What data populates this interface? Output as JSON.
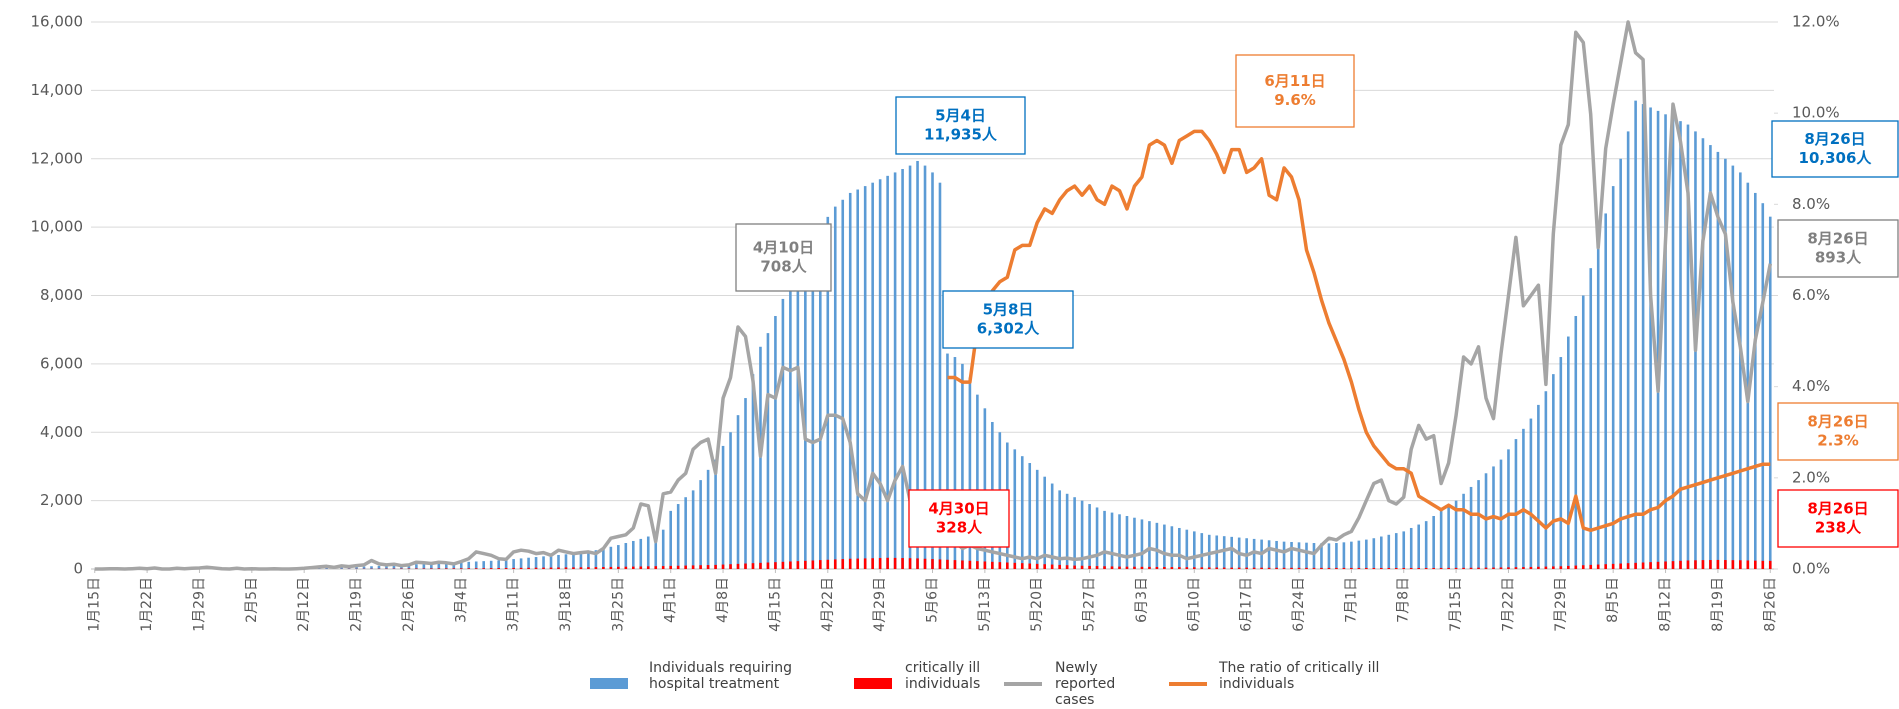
{
  "chart_data": {
    "type": "bar-line",
    "categories": [
      "1月15日",
      null,
      null,
      null,
      null,
      null,
      null,
      "1月22日",
      null,
      null,
      null,
      null,
      null,
      null,
      "1月29日",
      null,
      null,
      null,
      null,
      null,
      null,
      "2月5日",
      null,
      null,
      null,
      null,
      null,
      null,
      "2月12日",
      null,
      null,
      null,
      null,
      null,
      null,
      "2月19日",
      null,
      null,
      null,
      null,
      null,
      null,
      "2月26日",
      null,
      null,
      null,
      null,
      null,
      null,
      "3月4日",
      null,
      null,
      null,
      null,
      null,
      null,
      "3月11日",
      null,
      null,
      null,
      null,
      null,
      null,
      "3月18日",
      null,
      null,
      null,
      null,
      null,
      null,
      "3月25日",
      null,
      null,
      null,
      null,
      null,
      null,
      "4月1日",
      null,
      null,
      null,
      null,
      null,
      null,
      "4月8日",
      null,
      null,
      null,
      null,
      null,
      null,
      "4月15日",
      null,
      null,
      null,
      null,
      null,
      null,
      "4月22日",
      null,
      null,
      null,
      null,
      null,
      null,
      "4月29日",
      null,
      null,
      null,
      null,
      null,
      null,
      "5月6日",
      null,
      null,
      null,
      null,
      null,
      null,
      "5月13日",
      null,
      null,
      null,
      null,
      null,
      null,
      "5月20日",
      null,
      null,
      null,
      null,
      null,
      null,
      "5月27日",
      null,
      null,
      null,
      null,
      null,
      null,
      "6月3日",
      null,
      null,
      null,
      null,
      null,
      null,
      "6月10日",
      null,
      null,
      null,
      null,
      null,
      null,
      "6月17日",
      null,
      null,
      null,
      null,
      null,
      null,
      "6月24日",
      null,
      null,
      null,
      null,
      null,
      null,
      "7月1日",
      null,
      null,
      null,
      null,
      null,
      null,
      "7月8日",
      null,
      null,
      null,
      null,
      null,
      null,
      "7月15日",
      null,
      null,
      null,
      null,
      null,
      null,
      "7月22日",
      null,
      null,
      null,
      null,
      null,
      null,
      "7月29日",
      null,
      null,
      null,
      null,
      null,
      null,
      "8月5日",
      null,
      null,
      null,
      null,
      null,
      null,
      "8月12日",
      null,
      null,
      null,
      null,
      null,
      null,
      "8月19日",
      null,
      null,
      null,
      null,
      null,
      null,
      "8月26日"
    ],
    "series": [
      {
        "name": "Individuals requiring hospital treatment",
        "type": "bar",
        "color": "#5b9bd5",
        "axis": "y",
        "values": [
          1,
          1,
          1,
          1,
          1,
          1,
          1,
          2,
          2,
          3,
          4,
          5,
          6,
          8,
          9,
          11,
          12,
          13,
          14,
          15,
          16,
          17,
          18,
          20,
          22,
          25,
          28,
          30,
          33,
          36,
          40,
          45,
          50,
          55,
          60,
          65,
          70,
          80,
          90,
          100,
          110,
          120,
          130,
          140,
          150,
          160,
          170,
          180,
          190,
          200,
          210,
          220,
          230,
          240,
          250,
          270,
          290,
          310,
          330,
          350,
          370,
          390,
          410,
          430,
          450,
          480,
          510,
          550,
          600,
          650,
          700,
          760,
          820,
          880,
          950,
          1050,
          1150,
          1700,
          1900,
          2100,
          2300,
          2600,
          2900,
          3200,
          3600,
          4000,
          4500,
          5000,
          5700,
          6500,
          6900,
          7400,
          7900,
          8300,
          8700,
          9100,
          9500,
          9900,
          10300,
          10600,
          10800,
          11000,
          11100,
          11200,
          11300,
          11400,
          11500,
          11600,
          11700,
          11800,
          11935,
          11800,
          11600,
          11300,
          6302,
          6200,
          6000,
          5600,
          5100,
          4700,
          4300,
          4000,
          3700,
          3500,
          3300,
          3100,
          2900,
          2700,
          2500,
          2300,
          2200,
          2100,
          2000,
          1900,
          1800,
          1700,
          1650,
          1600,
          1550,
          1500,
          1450,
          1400,
          1350,
          1300,
          1250,
          1200,
          1150,
          1100,
          1050,
          1000,
          980,
          960,
          940,
          920,
          900,
          880,
          860,
          840,
          820,
          800,
          790,
          780,
          770,
          760,
          750,
          750,
          760,
          780,
          800,
          830,
          860,
          900,
          950,
          1000,
          1050,
          1100,
          1200,
          1300,
          1400,
          1550,
          1700,
          1850,
          2000,
          2200,
          2400,
          2600,
          2800,
          3000,
          3200,
          3500,
          3800,
          4100,
          4400,
          4800,
          5200,
          5700,
          6200,
          6800,
          7400,
          8000,
          8800,
          9600,
          10400,
          11200,
          12000,
          12800,
          13700,
          13600,
          13500,
          13400,
          13300,
          13200,
          13100,
          13000,
          12800,
          12600,
          12400,
          12200,
          12000,
          11800,
          11600,
          11300,
          11000,
          10700,
          10306
        ]
      },
      {
        "name": "critically ill individuals",
        "type": "bar",
        "color": "#ff0000",
        "axis": "y",
        "values": [
          0,
          0,
          0,
          0,
          0,
          0,
          0,
          0,
          0,
          0,
          0,
          0,
          0,
          0,
          0,
          0,
          0,
          0,
          0,
          0,
          0,
          0,
          0,
          0,
          0,
          0,
          0,
          1,
          1,
          2,
          2,
          3,
          3,
          4,
          5,
          6,
          7,
          8,
          9,
          10,
          11,
          12,
          13,
          14,
          15,
          16,
          17,
          18,
          19,
          20,
          21,
          22,
          24,
          26,
          28,
          30,
          32,
          34,
          36,
          38,
          40,
          42,
          44,
          46,
          48,
          50,
          52,
          55,
          58,
          61,
          64,
          67,
          70,
          74,
          78,
          82,
          86,
          90,
          95,
          100,
          105,
          110,
          115,
          120,
          130,
          140,
          150,
          160,
          170,
          180,
          190,
          200,
          210,
          220,
          230,
          240,
          250,
          260,
          270,
          280,
          290,
          300,
          305,
          310,
          315,
          320,
          328,
          325,
          320,
          315,
          310,
          300,
          290,
          280,
          270,
          260,
          250,
          240,
          230,
          220,
          210,
          200,
          190,
          180,
          170,
          160,
          150,
          140,
          130,
          120,
          110,
          100,
          95,
          90,
          85,
          80,
          75,
          70,
          68,
          66,
          64,
          62,
          60,
          58,
          56,
          54,
          52,
          50,
          48,
          46,
          44,
          42,
          40,
          40,
          40,
          38,
          38,
          36,
          36,
          35,
          35,
          34,
          34,
          33,
          33,
          32,
          32,
          32,
          31,
          31,
          31,
          30,
          30,
          30,
          30,
          30,
          30,
          30,
          30,
          30,
          31,
          32,
          33,
          34,
          36,
          38,
          40,
          42,
          45,
          48,
          52,
          56,
          60,
          65,
          70,
          75,
          80,
          90,
          100,
          110,
          120,
          130,
          140,
          150,
          160,
          170,
          180,
          190,
          200,
          210,
          220,
          230,
          240,
          250,
          255,
          260,
          262,
          265,
          262,
          258,
          255,
          250,
          245,
          240,
          238
        ]
      },
      {
        "name": "Newly reported cases",
        "type": "line",
        "color": "#a5a5a5",
        "axis": "y3",
        "values": [
          0,
          0,
          1,
          1,
          0,
          1,
          2,
          1,
          3,
          0,
          0,
          2,
          1,
          2,
          3,
          5,
          3,
          1,
          0,
          2,
          0,
          1,
          0,
          0,
          1,
          0,
          0,
          1,
          2,
          4,
          6,
          8,
          5,
          9,
          7,
          10,
          12,
          25,
          15,
          12,
          14,
          10,
          12,
          20,
          18,
          16,
          20,
          18,
          15,
          22,
          30,
          50,
          45,
          40,
          30,
          28,
          50,
          55,
          52,
          45,
          48,
          40,
          55,
          50,
          45,
          48,
          50,
          45,
          60,
          90,
          95,
          100,
          120,
          190,
          185,
          80,
          220,
          225,
          260,
          280,
          350,
          370,
          380,
          280,
          500,
          560,
          708,
          680,
          550,
          330,
          510,
          500,
          590,
          580,
          590,
          380,
          370,
          380,
          450,
          450,
          440,
          370,
          220,
          200,
          280,
          250,
          200,
          260,
          300,
          200,
          190,
          130,
          110,
          100,
          90,
          80,
          60,
          70,
          60,
          55,
          50,
          45,
          40,
          35,
          30,
          35,
          30,
          40,
          35,
          30,
          32,
          28,
          30,
          35,
          40,
          50,
          45,
          40,
          35,
          40,
          45,
          60,
          55,
          45,
          40,
          40,
          30,
          35,
          40,
          45,
          50,
          55,
          60,
          45,
          40,
          50,
          45,
          60,
          55,
          50,
          60,
          55,
          50,
          45,
          70,
          90,
          85,
          100,
          110,
          150,
          200,
          250,
          260,
          200,
          190,
          210,
          350,
          420,
          380,
          390,
          250,
          310,
          450,
          620,
          600,
          650,
          500,
          440,
          630,
          800,
          970,
          770,
          800,
          830,
          540,
          980,
          1240,
          1300,
          1570,
          1540,
          1330,
          940,
          1230,
          1360,
          1480,
          1600,
          1510,
          1490,
          800,
          520,
          960,
          1360,
          1250,
          1100,
          640,
          960,
          1100,
          1030,
          980,
          780,
          650,
          490,
          670,
          780,
          893
        ]
      },
      {
        "name": "The ratio of critically ill individuals",
        "type": "line",
        "color": "#ed7d31",
        "axis": "y2",
        "values": [
          null,
          null,
          null,
          null,
          null,
          null,
          null,
          null,
          null,
          null,
          null,
          null,
          null,
          null,
          null,
          null,
          null,
          null,
          null,
          null,
          null,
          null,
          null,
          null,
          null,
          null,
          null,
          null,
          null,
          null,
          null,
          null,
          null,
          null,
          null,
          null,
          null,
          null,
          null,
          null,
          null,
          null,
          null,
          null,
          null,
          null,
          null,
          null,
          null,
          null,
          null,
          null,
          null,
          null,
          null,
          null,
          null,
          null,
          null,
          null,
          null,
          null,
          null,
          null,
          null,
          null,
          null,
          null,
          null,
          null,
          null,
          null,
          null,
          null,
          null,
          null,
          null,
          null,
          null,
          null,
          null,
          null,
          null,
          null,
          null,
          null,
          null,
          null,
          null,
          null,
          null,
          null,
          null,
          null,
          null,
          null,
          null,
          null,
          null,
          null,
          null,
          null,
          null,
          null,
          null,
          null,
          null,
          null,
          null,
          null,
          null,
          null,
          null,
          null,
          4.2,
          4.2,
          4.1,
          4.1,
          5.3,
          5.8,
          6.1,
          6.3,
          6.4,
          7.0,
          7.1,
          7.1,
          7.6,
          7.9,
          7.8,
          8.1,
          8.3,
          8.4,
          8.2,
          8.4,
          8.1,
          8.0,
          8.4,
          8.3,
          7.9,
          8.4,
          8.6,
          9.3,
          9.4,
          9.3,
          8.9,
          9.4,
          9.5,
          9.6,
          9.6,
          9.4,
          9.1,
          8.7,
          9.2,
          9.2,
          8.7,
          8.8,
          9.0,
          8.2,
          8.1,
          8.8,
          8.6,
          8.1,
          7.0,
          6.5,
          5.9,
          5.4,
          5.0,
          4.6,
          4.1,
          3.5,
          3.0,
          2.7,
          2.5,
          2.3,
          2.2,
          2.2,
          2.1,
          1.6,
          1.5,
          1.4,
          1.3,
          1.4,
          1.3,
          1.3,
          1.2,
          1.2,
          1.1,
          1.15,
          1.1,
          1.2,
          1.2,
          1.3,
          1.2,
          1.05,
          0.9,
          1.05,
          1.1,
          1.0,
          1.6,
          0.9,
          0.85,
          0.9,
          0.95,
          1.0,
          1.1,
          1.15,
          1.2,
          1.2,
          1.3,
          1.35,
          1.5,
          1.6,
          1.75,
          1.8,
          1.85,
          1.9,
          1.95,
          2.0,
          2.05,
          2.1,
          2.15,
          2.2,
          2.25,
          2.3,
          2.3
        ]
      }
    ],
    "ylim": [
      0,
      16000
    ],
    "yticks": [
      0,
      {
        "value": 2000,
        "label": "2,000"
      },
      {
        "value": 4000,
        "label": "4,000"
      },
      {
        "value": 6000,
        "label": "6,000"
      },
      {
        "value": 8000,
        "label": "8,000"
      },
      {
        "value": 10000,
        "label": "10,000"
      },
      {
        "value": 12000,
        "label": "12,000"
      },
      {
        "value": 14000,
        "label": "14,000"
      },
      {
        "value": 16000,
        "label": "16,000"
      }
    ],
    "y2lim": [
      0,
      12
    ],
    "y2ticks": [
      {
        "value": 0,
        "label": "0.0%"
      },
      {
        "value": 2,
        "label": "2.0%"
      },
      {
        "value": 4,
        "label": "4.0%"
      },
      {
        "value": 6,
        "label": "6.0%"
      },
      {
        "value": 8,
        "label": "8.0%"
      },
      {
        "value": 10,
        "label": "10.0%"
      },
      {
        "value": 12,
        "label": "12.0%"
      }
    ],
    "y3lim": [
      0,
      1600
    ],
    "grid": true,
    "legend": "bottom",
    "annotations": [
      {
        "lines": [
          "4月10日",
          "708人"
        ],
        "color": "#808080"
      },
      {
        "lines": [
          "5月4日",
          "11,935人"
        ],
        "color": "#0070c0"
      },
      {
        "lines": [
          "5月8日",
          "6,302人"
        ],
        "color": "#0070c0"
      },
      {
        "lines": [
          "4月30日",
          "328人"
        ],
        "color": "#ff0000"
      },
      {
        "lines": [
          "6月11日",
          "9.6%"
        ],
        "color": "#ed7d31"
      },
      {
        "lines": [
          "8月26日",
          "10,306人"
        ],
        "color": "#0070c0"
      },
      {
        "lines": [
          "8月26日",
          "893人"
        ],
        "color": "#808080"
      },
      {
        "lines": [
          "8月26日",
          "2.3%"
        ],
        "color": "#ed7d31"
      },
      {
        "lines": [
          "8月26日",
          "238人"
        ],
        "color": "#ff0000"
      }
    ]
  }
}
